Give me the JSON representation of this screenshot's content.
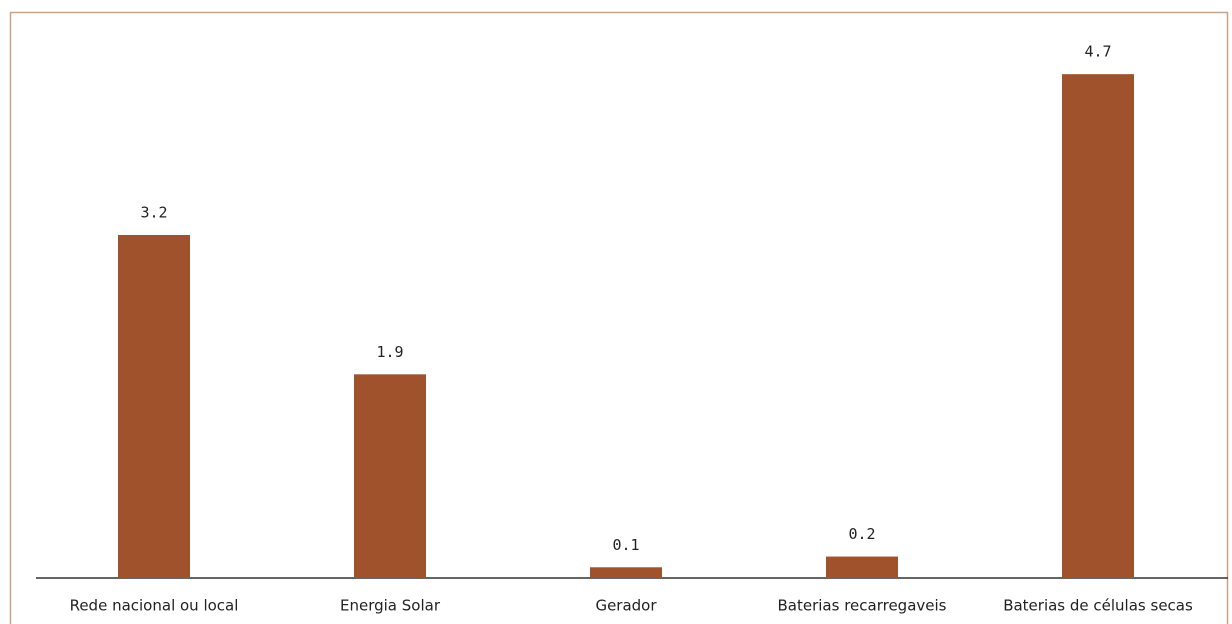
{
  "chart_data": {
    "type": "bar",
    "categories": [
      "Rede nacional ou local",
      "Energia Solar",
      "Gerador",
      "Baterias recarregaveis",
      "Baterias de células secas"
    ],
    "values": [
      3.2,
      1.9,
      0.1,
      0.2,
      4.7
    ],
    "color": "#a0522d"
  }
}
